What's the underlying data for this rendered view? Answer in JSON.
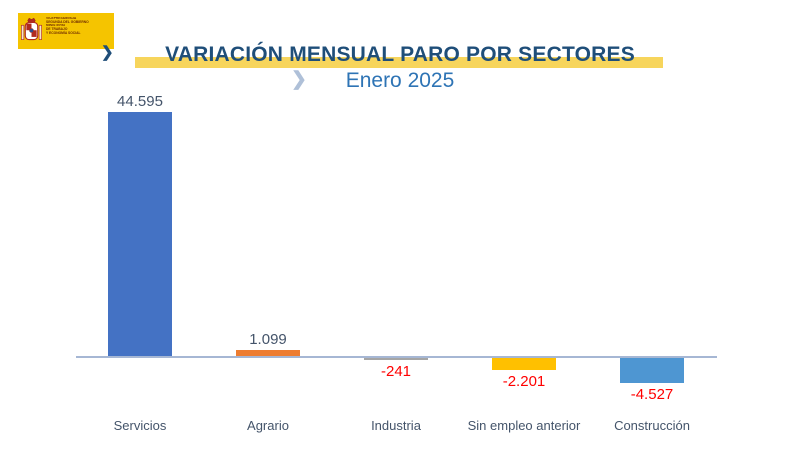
{
  "logo": {
    "department_lines": [
      "VICEPRESIDENCIA",
      "SEGUNDA DEL GOBIERNO"
    ],
    "ministry_lines": [
      "MINISTERIO",
      "DE TRABAJO",
      "Y ECONOMÍA SOCIAL"
    ],
    "bg_color": "#F5C400",
    "text_color": "#6E2B00"
  },
  "header": {
    "title": "VARIACIÓN MENSUAL PARO POR SECTORES",
    "subtitle": "Enero 2025",
    "title_mark_glyph": "❯",
    "subtitle_chevron_glyph": "❯",
    "title_color": "#1F4E79",
    "subtitle_color": "#2E74B5",
    "highlight_color": "#F7D55C",
    "title_mark_color": "#1F4E79",
    "subtitle_chevron_color": "#AFC0D8"
  },
  "chart_data": {
    "type": "bar",
    "title": "VARIACIÓN MENSUAL PARO POR SECTORES",
    "subtitle": "Enero 2025",
    "categories": [
      "Servicios",
      "Agrario",
      "Industria",
      "Sin empleo anterior",
      "Construcción"
    ],
    "values": [
      44595,
      1099,
      -241,
      -2201,
      -4527
    ],
    "value_labels": [
      "44.595",
      "1.099",
      "-241",
      "-2.201",
      "-4.527"
    ],
    "bar_colors": [
      "#4472C4",
      "#ED7D31",
      "#A5A5A5",
      "#FFC000",
      "#4E96D2"
    ],
    "positive_label_color": "#44546A",
    "negative_label_color": "#FF0000",
    "category_label_color": "#44546A",
    "axis_color": "#A6B7D4",
    "baseline_value": 0,
    "ylim": [
      -4527,
      44595
    ],
    "grid": false,
    "legend": false
  }
}
